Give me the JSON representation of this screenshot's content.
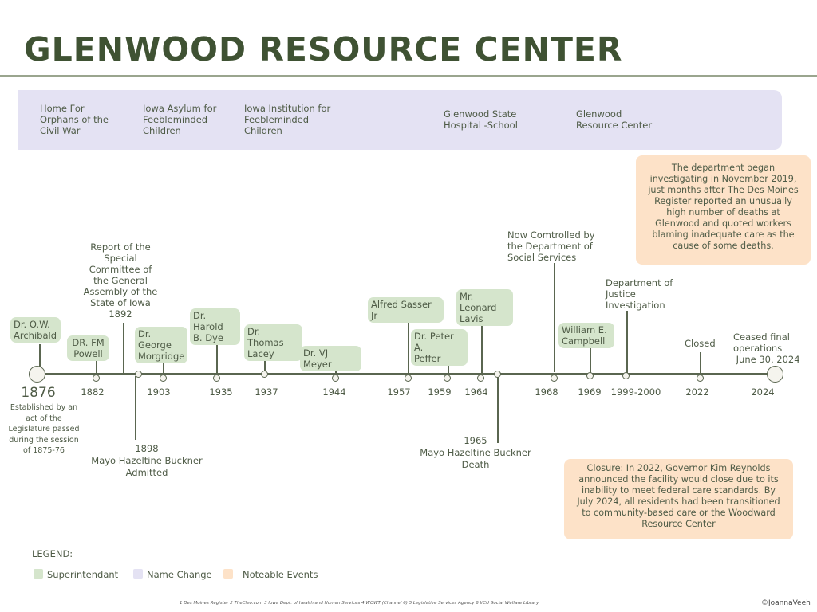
{
  "title": "GLENWOOD RESOURCE CENTER",
  "name_changes": [
    "Home For\nOrphans of the\nCivil War",
    "Iowa Asylum for\nFeebleminded\nChildren",
    "Iowa Institution for\nFeebleminded\nChildren",
    "Glenwood State\nHospital -School",
    "Glenwood\nResource Center"
  ],
  "notable_top": "The department began\ninvestigating in November 2019,\njust months after The Des Moines\nRegister reported an unusually\nhigh number of deaths at\nGlenwood and quoted workers\nblaming inadequate care as the\ncause of some deaths.",
  "notable_bottom": "Closure: In 2022, Governor Kim Reynolds\nannounced the facility would close due to its\ninability to meet federal care standards. By\nJuly 2024, all residents had been transitioned\nto community-based care or the Woodward\nResource Center",
  "superintendents": [
    "Dr. O.W.\nArchibald",
    "DR. FM\nPowell",
    "Dr. George\nMorgridge",
    "Dr. Harold\nB. Dye",
    "Dr. Thomas\nLacey",
    "Dr. VJ Meyer",
    "Alfred Sasser Jr",
    "Dr. Peter A.\nPeffer",
    "Mr. Leonard\nLavis",
    "William E.\nCampbell"
  ],
  "years": [
    "1876",
    "1882",
    "1903",
    "1935",
    "1937",
    "1944",
    "1957",
    "1959",
    "1964",
    "1968",
    "1969",
    "1999-2000",
    "2022",
    "2024"
  ],
  "events": {
    "established": "Established by an\nact of the\nLegislature passed\nduring the session\nof 1875-76",
    "report": "Report of the\nSpecial\nCommittee of\nthe General\nAssembly of the\nState of Iowa\n1892",
    "admitted": "1898\nMayo Hazeltine Buckner\nAdmitted",
    "death": "1965\nMayo Hazeltine Buckner\nDeath",
    "controlled": "Now Comtrolled by\nthe Department of\nSocial Services",
    "justice": "Department of\nJustice\nInvestigation",
    "closed": "Closed",
    "ceased": "Ceased final\noperations\n June 30, 2024"
  },
  "legend": {
    "heading": "LEGEND:",
    "items": [
      {
        "label": "Superintendant",
        "color": "#d5e5cc"
      },
      {
        "label": "Name Change",
        "color": "#e4e2f3"
      },
      {
        "label": "Noteable Events",
        "color": "#fde2c8"
      }
    ]
  },
  "footer": {
    "sources": "1 Des Moines Register 2 TheCleo.com 3 Iowa Dept. of Health and Human Services 4 WOWT (Channel 6) 5 Legislative Services Agency  6 VCU Social Welfare Library",
    "credit": "©JoannaVeeh"
  }
}
